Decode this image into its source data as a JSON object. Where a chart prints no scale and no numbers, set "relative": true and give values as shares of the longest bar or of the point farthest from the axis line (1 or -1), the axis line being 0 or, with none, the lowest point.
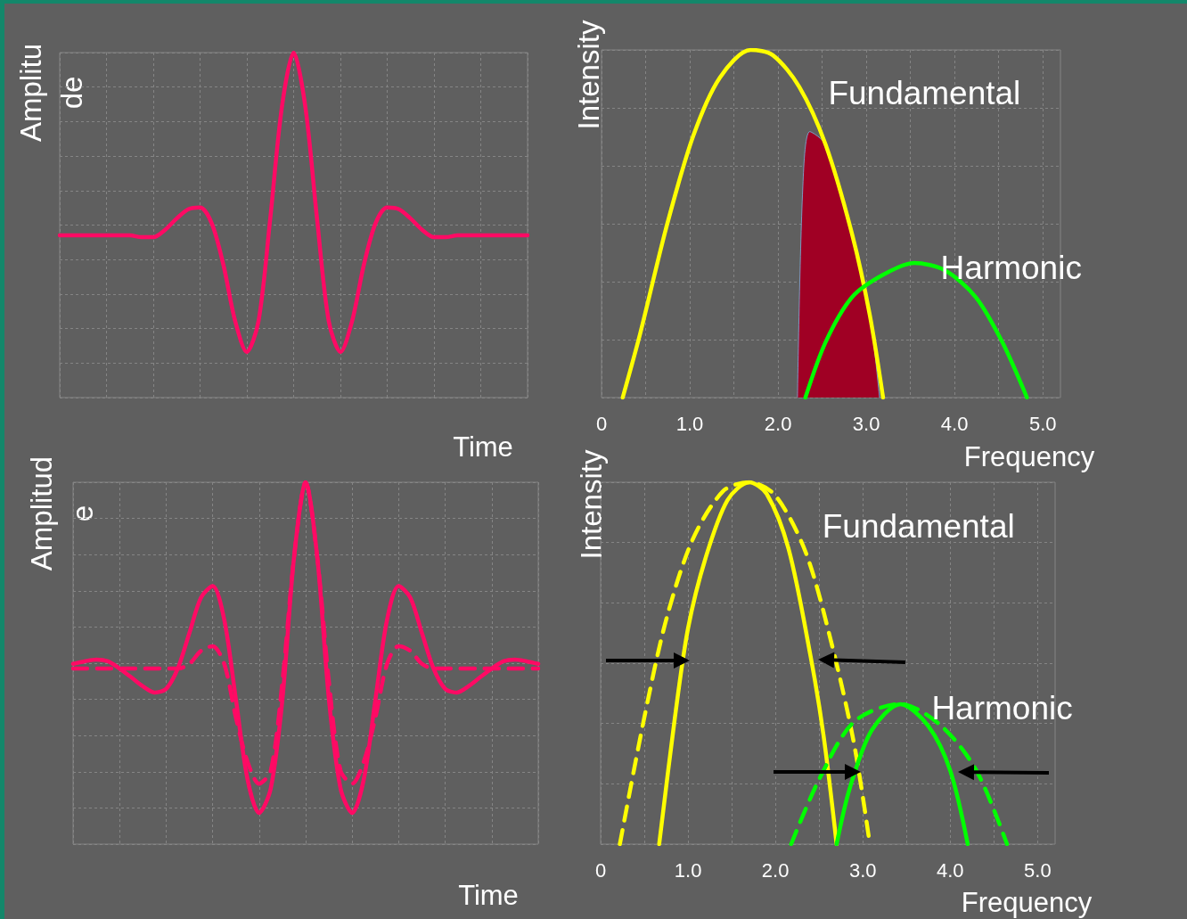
{
  "chart_data": [
    {
      "type": "line",
      "relative": true,
      "xlabel": "Time",
      "ylabel": "Amplitu de",
      "grid": true,
      "tick_labels": false,
      "marker": "none",
      "line_style": "solid",
      "categories": [
        null,
        null,
        null,
        null,
        null,
        null,
        null,
        null,
        null,
        null,
        null,
        null,
        null,
        null,
        null,
        null,
        null,
        null,
        null,
        null,
        null,
        null,
        null,
        null,
        null,
        null,
        null,
        null,
        null,
        null,
        null,
        null,
        null,
        null,
        null,
        null,
        null,
        null,
        null,
        null,
        null
      ],
      "series": [
        {
          "color": "#ff0a64",
          "values": [
            0.47,
            0.47,
            0.47,
            0.47,
            0.47,
            0.47,
            0.47,
            0.465,
            0.465,
            0.486,
            0.519,
            0.546,
            0.551,
            0.505,
            0.384,
            0.222,
            0.132,
            0.222,
            0.519,
            0.843,
            1,
            0.843,
            0.519,
            0.222,
            0.132,
            0.222,
            0.384,
            0.505,
            0.551,
            0.546,
            0.519,
            0.486,
            0.465,
            0.465,
            0.47,
            0.47,
            0.47,
            0.47,
            0.47,
            0.47,
            0.47
          ]
        }
      ]
    },
    {
      "type": "line",
      "relative": true,
      "xlabel": "Frequency",
      "ylabel": "Intensity",
      "grid": true,
      "tick_labels": "x",
      "marker": "none",
      "line_style": "solid",
      "xlim": [
        0,
        5.2
      ],
      "xticks": [
        0,
        {
          "value": 0.5,
          "label": null
        },
        {
          "value": 1,
          "label": "1.0"
        },
        {
          "value": 1.5,
          "label": null
        },
        {
          "value": 2,
          "label": "2.0"
        },
        {
          "value": 2.5,
          "label": null
        },
        {
          "value": 3,
          "label": "3.0"
        },
        {
          "value": 3.5,
          "label": null
        },
        {
          "value": 4,
          "label": "4.0"
        },
        {
          "value": 4.5,
          "label": null
        },
        {
          "value": 5,
          "label": "5.0"
        }
      ],
      "series": [
        {
          "type": "area",
          "color": "#a00024",
          "x": [
            2.22,
            2.28,
            2.36,
            2.54,
            2.84,
            3.04,
            3.15
          ],
          "values": [
            0,
            0.6,
            0.765,
            0.727,
            0.469,
            0.237,
            0
          ]
        },
        {
          "name": "Fundamental",
          "color": "#ffff00",
          "x": [
            0.24,
            0.44,
            0.74,
            1.04,
            1.34,
            1.69,
            1.94,
            2.24,
            2.54,
            2.84,
            3.04,
            3.19
          ],
          "values": [
            0,
            0.186,
            0.495,
            0.753,
            0.92,
            1,
            0.985,
            0.894,
            0.727,
            0.469,
            0.237,
            0
          ]
        },
        {
          "name": "Harmonic",
          "color": "#00ff00",
          "x": [
            2.31,
            2.54,
            2.84,
            3.19,
            3.54,
            3.89,
            4.24,
            4.54,
            4.82
          ],
          "values": [
            0,
            0.16,
            0.289,
            0.353,
            0.387,
            0.366,
            0.289,
            0.16,
            0
          ]
        }
      ]
    },
    {
      "type": "line",
      "relative": true,
      "xlabel": "Time",
      "ylabel": "Amplitud e",
      "grid": true,
      "tick_labels": false,
      "marker": "none",
      "line_style": "solid",
      "categories": [
        null,
        null,
        null,
        null,
        null,
        null,
        null,
        null,
        null,
        null,
        null,
        null,
        null,
        null,
        null,
        null,
        null,
        null,
        null,
        null,
        null,
        null,
        null,
        null,
        null,
        null,
        null,
        null,
        null,
        null,
        null,
        null,
        null,
        null,
        null,
        null,
        null,
        null,
        null,
        null,
        null
      ],
      "series": [
        {
          "color": "#ff0a64",
          "values": [
            0.498,
            0.505,
            0.51,
            0.505,
            0.485,
            0.461,
            0.436,
            0.419,
            0.429,
            0.485,
            0.583,
            0.681,
            0.713,
            0.62,
            0.4,
            0.179,
            0.086,
            0.154,
            0.4,
            0.792,
            1,
            0.792,
            0.4,
            0.154,
            0.086,
            0.179,
            0.4,
            0.62,
            0.713,
            0.681,
            0.583,
            0.485,
            0.429,
            0.419,
            0.436,
            0.461,
            0.485,
            0.505,
            0.51,
            0.505,
            0.498
          ]
        },
        {
          "color": "#ff0a64",
          "line_style": "dashed",
          "values": [
            0.485,
            0.485,
            0.485,
            0.485,
            0.485,
            0.485,
            0.485,
            0.485,
            0.485,
            0.485,
            0.498,
            0.534,
            0.547,
            0.498,
            0.35,
            0.228,
            0.167,
            0.203,
            0.449,
            0.792,
            1,
            0.792,
            0.449,
            0.203,
            0.167,
            0.228,
            0.35,
            0.498,
            0.547,
            0.534,
            0.498,
            0.485,
            0.485,
            0.485,
            0.485,
            0.485,
            0.485,
            0.485,
            0.485,
            0.485,
            0.485
          ]
        }
      ]
    },
    {
      "type": "line",
      "relative": true,
      "xlabel": "Frequency",
      "ylabel": "Intensity",
      "grid": true,
      "tick_labels": "x",
      "marker": "none",
      "line_style": "solid",
      "xlim": [
        0,
        5.2
      ],
      "xticks": [
        0,
        {
          "value": 0.5,
          "label": null
        },
        {
          "value": 1,
          "label": "1.0"
        },
        {
          "value": 1.5,
          "label": null
        },
        {
          "value": 2,
          "label": "2.0"
        },
        {
          "value": 2.5,
          "label": null
        },
        {
          "value": 3,
          "label": "3.0"
        },
        {
          "value": 3.5,
          "label": null
        },
        {
          "value": 4,
          "label": "4.0"
        },
        {
          "value": 4.5,
          "label": null
        },
        {
          "value": 5,
          "label": "5.0"
        }
      ],
      "series": [
        {
          "name": "Fundamental",
          "color": "#ffff00",
          "x": [
            0.67,
            0.85,
            1.0,
            1.2,
            1.45,
            1.7,
            1.9,
            2.15,
            2.4,
            2.55,
            2.7
          ],
          "values": [
            0,
            0.35,
            0.596,
            0.79,
            0.95,
            1,
            0.968,
            0.816,
            0.522,
            0.301,
            0
          ]
        },
        {
          "color": "#ffff00",
          "line_style": "dashed",
          "x": [
            0.22,
            0.5,
            0.75,
            1.05,
            1.4,
            1.7,
            2.0,
            2.35,
            2.65,
            2.9,
            3.08
          ],
          "values": [
            0,
            0.35,
            0.62,
            0.84,
            0.975,
            1,
            0.963,
            0.804,
            0.547,
            0.277,
            0
          ]
        },
        {
          "name": "Harmonic",
          "color": "#00ff00",
          "x": [
            2.7,
            2.85,
            3.1,
            3.43,
            3.75,
            4.0,
            4.2
          ],
          "values": [
            0,
            0.154,
            0.314,
            0.387,
            0.326,
            0.203,
            0
          ]
        },
        {
          "color": "#00ff00",
          "line_style": "dashed",
          "x": [
            2.18,
            2.5,
            2.9,
            3.43,
            3.9,
            4.3,
            4.65
          ],
          "values": [
            0,
            0.179,
            0.338,
            0.387,
            0.326,
            0.203,
            0
          ]
        }
      ]
    }
  ]
}
